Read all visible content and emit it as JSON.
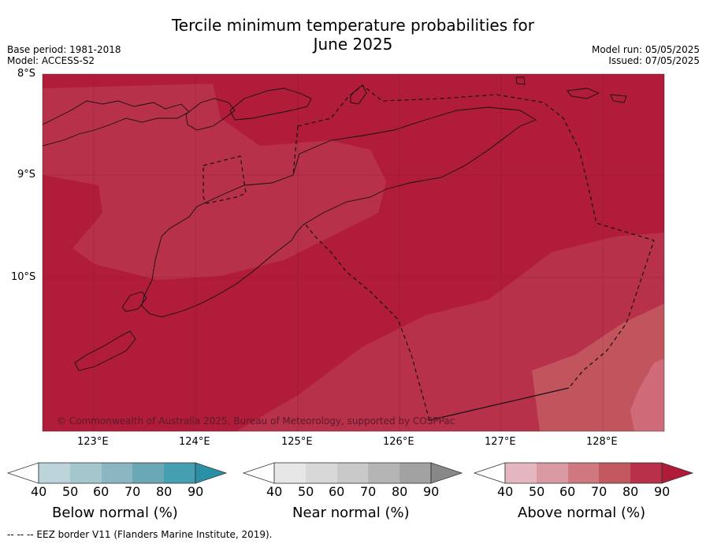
{
  "title_line1": "Tercile minimum temperature probabilities for",
  "title_line2": "June 2025",
  "meta_left": {
    "base_period": "Base period: 1981-2018",
    "model": "Model: ACCESS-S2"
  },
  "meta_right": {
    "model_run": "Model run: 05/05/2025",
    "issued": "Issued: 07/05/2025"
  },
  "lat_labels": [
    "8°S",
    "9°S",
    "10°S"
  ],
  "lon_labels": [
    "123°E",
    "124°E",
    "125°E",
    "126°E",
    "127°E",
    "128°E"
  ],
  "copyright": "© Commonwealth of Australia 2025, Bureau of Meteorology, supported by COSPPac",
  "colorbars": [
    {
      "label": "Below normal (%)",
      "ticks": [
        "40",
        "50",
        "60",
        "70",
        "80",
        "90"
      ],
      "colors": [
        "#bcd3d9",
        "#a4c7cd",
        "#89b6c0",
        "#6aa7b5",
        "#459fb0",
        "#2a90a6"
      ]
    },
    {
      "label": "Near normal (%)",
      "ticks": [
        "40",
        "50",
        "60",
        "70",
        "80",
        "90"
      ],
      "colors": [
        "#e6e6e6",
        "#d8d8d8",
        "#c9c9c9",
        "#b5b5b5",
        "#a2a2a2",
        "#888888"
      ]
    },
    {
      "label": "Above normal (%)",
      "ticks": [
        "40",
        "50",
        "60",
        "70",
        "80",
        "90"
      ],
      "colors": [
        "#e4b7c0",
        "#d99aa4",
        "#cf7880",
        "#c3575f",
        "#b8304a",
        "#b01b3a"
      ]
    }
  ],
  "footer": "--  --  -- EEZ border V11 (Flanders Marine Institute, 2019).",
  "map_colors": {
    "above_90": "#b01c39",
    "above_80": "#b8314a",
    "above_70": "#c2545e",
    "above_60": "#cf6a78"
  }
}
